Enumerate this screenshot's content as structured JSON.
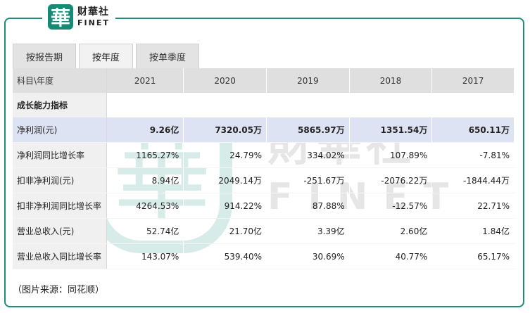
{
  "logo": {
    "mark": "華",
    "cn": "财華社",
    "en": "FINET"
  },
  "tabs": [
    {
      "label": "按报告期",
      "active": false
    },
    {
      "label": "按年度",
      "active": true
    },
    {
      "label": "按单季度",
      "active": false
    }
  ],
  "table": {
    "header": {
      "label": "科目\\年度",
      "years": [
        "2021",
        "2020",
        "2019",
        "2018",
        "2017"
      ]
    },
    "section_title": "成长能力指标",
    "rows": [
      {
        "label": "净利润(元)",
        "values": [
          "9.26亿",
          "7320.05万",
          "5865.97万",
          "1351.54万",
          "650.11万"
        ]
      },
      {
        "label": "净利润同比增长率",
        "values": [
          "1165.27%",
          "24.79%",
          "334.02%",
          "107.89%",
          "-7.81%"
        ]
      },
      {
        "label": "扣非净利润(元)",
        "values": [
          "8.94亿",
          "2049.14万",
          "-251.67万",
          "-2076.22万",
          "-1844.44万"
        ]
      },
      {
        "label": "扣非净利润同比增长率",
        "values": [
          "4264.53%",
          "914.22%",
          "87.88%",
          "-12.57%",
          "22.71%"
        ]
      },
      {
        "label": "营业总收入(元)",
        "values": [
          "52.74亿",
          "21.70亿",
          "3.39亿",
          "2.60亿",
          "1.84亿"
        ]
      },
      {
        "label": "营业总收入同比增长率",
        "values": [
          "143.07%",
          "539.40%",
          "30.69%",
          "40.77%",
          "65.17%"
        ]
      }
    ]
  },
  "watermark": {
    "mark": "華",
    "cn": "財華社",
    "en": "FINET"
  },
  "source_note": "（图片来源：同花顺）",
  "colors": {
    "brand": "#178a73",
    "highlight_row": "#dde3f3",
    "header_bg": "#dfdfdf"
  }
}
